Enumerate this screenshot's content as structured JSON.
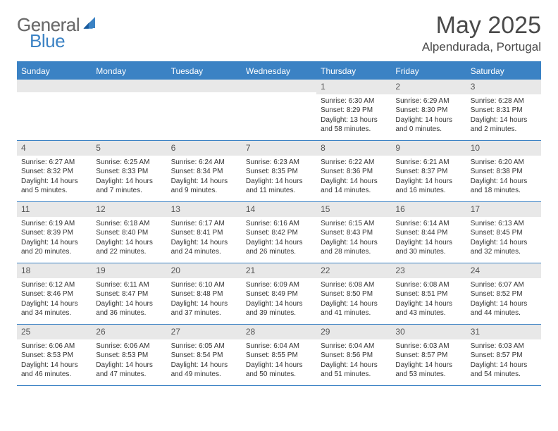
{
  "logo": {
    "general": "General",
    "blue": "Blue"
  },
  "title": "May 2025",
  "location": "Alpendurada, Portugal",
  "weekdays": [
    "Sunday",
    "Monday",
    "Tuesday",
    "Wednesday",
    "Thursday",
    "Friday",
    "Saturday"
  ],
  "colors": {
    "accent": "#3b82c4",
    "header_bg": "#3b82c4",
    "daybar_bg": "#e8e8e8",
    "text": "#333333",
    "title_text": "#4a4a4a",
    "logo_gray": "#6b6b6b"
  },
  "weeks": [
    [
      {
        "num": "",
        "sunrise": "",
        "sunset": "",
        "daylight": ""
      },
      {
        "num": "",
        "sunrise": "",
        "sunset": "",
        "daylight": ""
      },
      {
        "num": "",
        "sunrise": "",
        "sunset": "",
        "daylight": ""
      },
      {
        "num": "",
        "sunrise": "",
        "sunset": "",
        "daylight": ""
      },
      {
        "num": "1",
        "sunrise": "Sunrise: 6:30 AM",
        "sunset": "Sunset: 8:29 PM",
        "daylight": "Daylight: 13 hours and 58 minutes."
      },
      {
        "num": "2",
        "sunrise": "Sunrise: 6:29 AM",
        "sunset": "Sunset: 8:30 PM",
        "daylight": "Daylight: 14 hours and 0 minutes."
      },
      {
        "num": "3",
        "sunrise": "Sunrise: 6:28 AM",
        "sunset": "Sunset: 8:31 PM",
        "daylight": "Daylight: 14 hours and 2 minutes."
      }
    ],
    [
      {
        "num": "4",
        "sunrise": "Sunrise: 6:27 AM",
        "sunset": "Sunset: 8:32 PM",
        "daylight": "Daylight: 14 hours and 5 minutes."
      },
      {
        "num": "5",
        "sunrise": "Sunrise: 6:25 AM",
        "sunset": "Sunset: 8:33 PM",
        "daylight": "Daylight: 14 hours and 7 minutes."
      },
      {
        "num": "6",
        "sunrise": "Sunrise: 6:24 AM",
        "sunset": "Sunset: 8:34 PM",
        "daylight": "Daylight: 14 hours and 9 minutes."
      },
      {
        "num": "7",
        "sunrise": "Sunrise: 6:23 AM",
        "sunset": "Sunset: 8:35 PM",
        "daylight": "Daylight: 14 hours and 11 minutes."
      },
      {
        "num": "8",
        "sunrise": "Sunrise: 6:22 AM",
        "sunset": "Sunset: 8:36 PM",
        "daylight": "Daylight: 14 hours and 14 minutes."
      },
      {
        "num": "9",
        "sunrise": "Sunrise: 6:21 AM",
        "sunset": "Sunset: 8:37 PM",
        "daylight": "Daylight: 14 hours and 16 minutes."
      },
      {
        "num": "10",
        "sunrise": "Sunrise: 6:20 AM",
        "sunset": "Sunset: 8:38 PM",
        "daylight": "Daylight: 14 hours and 18 minutes."
      }
    ],
    [
      {
        "num": "11",
        "sunrise": "Sunrise: 6:19 AM",
        "sunset": "Sunset: 8:39 PM",
        "daylight": "Daylight: 14 hours and 20 minutes."
      },
      {
        "num": "12",
        "sunrise": "Sunrise: 6:18 AM",
        "sunset": "Sunset: 8:40 PM",
        "daylight": "Daylight: 14 hours and 22 minutes."
      },
      {
        "num": "13",
        "sunrise": "Sunrise: 6:17 AM",
        "sunset": "Sunset: 8:41 PM",
        "daylight": "Daylight: 14 hours and 24 minutes."
      },
      {
        "num": "14",
        "sunrise": "Sunrise: 6:16 AM",
        "sunset": "Sunset: 8:42 PM",
        "daylight": "Daylight: 14 hours and 26 minutes."
      },
      {
        "num": "15",
        "sunrise": "Sunrise: 6:15 AM",
        "sunset": "Sunset: 8:43 PM",
        "daylight": "Daylight: 14 hours and 28 minutes."
      },
      {
        "num": "16",
        "sunrise": "Sunrise: 6:14 AM",
        "sunset": "Sunset: 8:44 PM",
        "daylight": "Daylight: 14 hours and 30 minutes."
      },
      {
        "num": "17",
        "sunrise": "Sunrise: 6:13 AM",
        "sunset": "Sunset: 8:45 PM",
        "daylight": "Daylight: 14 hours and 32 minutes."
      }
    ],
    [
      {
        "num": "18",
        "sunrise": "Sunrise: 6:12 AM",
        "sunset": "Sunset: 8:46 PM",
        "daylight": "Daylight: 14 hours and 34 minutes."
      },
      {
        "num": "19",
        "sunrise": "Sunrise: 6:11 AM",
        "sunset": "Sunset: 8:47 PM",
        "daylight": "Daylight: 14 hours and 36 minutes."
      },
      {
        "num": "20",
        "sunrise": "Sunrise: 6:10 AM",
        "sunset": "Sunset: 8:48 PM",
        "daylight": "Daylight: 14 hours and 37 minutes."
      },
      {
        "num": "21",
        "sunrise": "Sunrise: 6:09 AM",
        "sunset": "Sunset: 8:49 PM",
        "daylight": "Daylight: 14 hours and 39 minutes."
      },
      {
        "num": "22",
        "sunrise": "Sunrise: 6:08 AM",
        "sunset": "Sunset: 8:50 PM",
        "daylight": "Daylight: 14 hours and 41 minutes."
      },
      {
        "num": "23",
        "sunrise": "Sunrise: 6:08 AM",
        "sunset": "Sunset: 8:51 PM",
        "daylight": "Daylight: 14 hours and 43 minutes."
      },
      {
        "num": "24",
        "sunrise": "Sunrise: 6:07 AM",
        "sunset": "Sunset: 8:52 PM",
        "daylight": "Daylight: 14 hours and 44 minutes."
      }
    ],
    [
      {
        "num": "25",
        "sunrise": "Sunrise: 6:06 AM",
        "sunset": "Sunset: 8:53 PM",
        "daylight": "Daylight: 14 hours and 46 minutes."
      },
      {
        "num": "26",
        "sunrise": "Sunrise: 6:06 AM",
        "sunset": "Sunset: 8:53 PM",
        "daylight": "Daylight: 14 hours and 47 minutes."
      },
      {
        "num": "27",
        "sunrise": "Sunrise: 6:05 AM",
        "sunset": "Sunset: 8:54 PM",
        "daylight": "Daylight: 14 hours and 49 minutes."
      },
      {
        "num": "28",
        "sunrise": "Sunrise: 6:04 AM",
        "sunset": "Sunset: 8:55 PM",
        "daylight": "Daylight: 14 hours and 50 minutes."
      },
      {
        "num": "29",
        "sunrise": "Sunrise: 6:04 AM",
        "sunset": "Sunset: 8:56 PM",
        "daylight": "Daylight: 14 hours and 51 minutes."
      },
      {
        "num": "30",
        "sunrise": "Sunrise: 6:03 AM",
        "sunset": "Sunset: 8:57 PM",
        "daylight": "Daylight: 14 hours and 53 minutes."
      },
      {
        "num": "31",
        "sunrise": "Sunrise: 6:03 AM",
        "sunset": "Sunset: 8:57 PM",
        "daylight": "Daylight: 14 hours and 54 minutes."
      }
    ]
  ]
}
